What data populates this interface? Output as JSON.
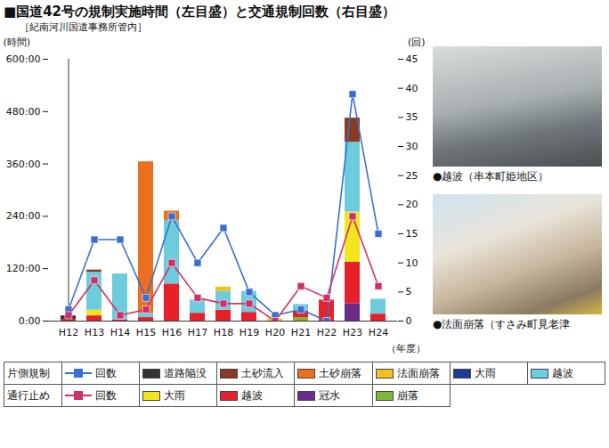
{
  "chart_data": {
    "type": "bar",
    "stacked": true,
    "title": "■国道42号の規制実施時間（左目盛）と交通規制回数（右目盛）",
    "subtitle": "［紀南河川国道事務所管内］",
    "x_label": "（年度）",
    "y_label": "(時間)",
    "y2_label": "(回)",
    "legend": "bottom",
    "categories": [
      "H12",
      "H13",
      "H14",
      "H15",
      "H16",
      "H17",
      "H18",
      "H19",
      "H20",
      "H21",
      "H22",
      "H23",
      "H24"
    ],
    "ylim": [
      0,
      600
    ],
    "yticks": [
      {
        "value": 0,
        "label": "0:00"
      },
      {
        "value": 120,
        "label": "120:00"
      },
      {
        "value": 240,
        "label": "240:00"
      },
      {
        "value": 360,
        "label": "360:00"
      },
      {
        "value": 480,
        "label": "480:00"
      },
      {
        "value": 600,
        "label": "600:00"
      }
    ],
    "y2lim": [
      0,
      45
    ],
    "y2ticks": [
      0,
      5,
      10,
      15,
      20,
      25,
      30,
      35,
      40,
      45
    ],
    "series": [
      {
        "group": "片側規制",
        "name": "回数",
        "type": "line",
        "axis": "y2",
        "marker": "square",
        "color": "#3a6fd0",
        "values": [
          2,
          14,
          14,
          4,
          18,
          10,
          16,
          5,
          1,
          2,
          0,
          39,
          15
        ]
      },
      {
        "group": "片側規制",
        "name": "道路陥没",
        "color": "#333333",
        "values": [
          8,
          0,
          0,
          0,
          0,
          0,
          0,
          0,
          0,
          0,
          0,
          0,
          0
        ]
      },
      {
        "group": "片側規制",
        "name": "土砂流入",
        "color": "#8b3a22",
        "values": [
          0,
          5,
          0,
          0,
          0,
          0,
          0,
          0,
          0,
          0,
          0,
          55,
          0
        ]
      },
      {
        "group": "片側規制",
        "name": "土砂崩落",
        "color": "#ea6f1e",
        "values": [
          0,
          0,
          0,
          347,
          22,
          0,
          0,
          0,
          0,
          0,
          0,
          0,
          0
        ]
      },
      {
        "group": "片側規制",
        "name": "法面崩落",
        "color": "#f4c020",
        "values": [
          0,
          0,
          0,
          0,
          0,
          0,
          10,
          0,
          5,
          0,
          0,
          0,
          0
        ]
      },
      {
        "group": "片側規制",
        "name": "大雨",
        "color": "#1c3c98",
        "values": [
          0,
          0,
          0,
          0,
          0,
          0,
          0,
          0,
          0,
          0,
          0,
          0,
          0
        ]
      },
      {
        "group": "片側規制",
        "name": "越波",
        "color": "#6ccbdc",
        "values": [
          0,
          87,
          105,
          10,
          145,
          30,
          43,
          48,
          0,
          15,
          0,
          160,
          34
        ]
      },
      {
        "group": "通行止め",
        "name": "回数",
        "type": "line",
        "axis": "y2",
        "marker": "square",
        "color": "#d0306a",
        "values": [
          1,
          7,
          1,
          2,
          10,
          4,
          3,
          3,
          0,
          6,
          4,
          18,
          6
        ]
      },
      {
        "group": "通行止め",
        "name": "大雨",
        "color": "#f2e51e",
        "values": [
          0,
          13,
          0,
          0,
          0,
          0,
          0,
          0,
          0,
          0,
          0,
          115,
          0
        ]
      },
      {
        "group": "通行止め",
        "name": "越波",
        "color": "#e8202a",
        "values": [
          4,
          12,
          3,
          8,
          85,
          18,
          25,
          20,
          0,
          15,
          48,
          95,
          16
        ]
      },
      {
        "group": "通行止め",
        "name": "冠水",
        "color": "#6b2a8c",
        "values": [
          0,
          0,
          0,
          0,
          0,
          0,
          0,
          0,
          0,
          0,
          0,
          40,
          0
        ]
      },
      {
        "group": "通行止め",
        "name": "崩落",
        "color": "#7cb83c",
        "values": [
          0,
          0,
          0,
          0,
          0,
          0,
          0,
          0,
          0,
          8,
          0,
          0,
          0
        ]
      }
    ]
  },
  "photos": [
    {
      "caption": "●越波（串本町姫地区）"
    },
    {
      "caption": "●法面崩落（すさみ町見老津"
    }
  ]
}
